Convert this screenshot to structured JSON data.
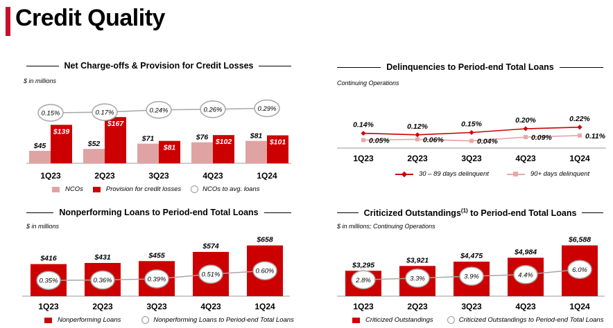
{
  "page": {
    "title": "Credit Quality"
  },
  "colors": {
    "accent": "#c8102e",
    "dark_red": "#cc0000",
    "light_red": "#dfa3a3",
    "pink_line": "#e8a8a8",
    "grey_line": "#a6a6a6"
  },
  "panels": {
    "nco": {
      "title": "Net Charge-offs & Provision for Credit Losses",
      "note": "$ in millions",
      "legend": [
        "NCOs",
        "Provision for credit losses",
        "NCOs to avg. loans"
      ]
    },
    "delinq": {
      "title": "Delinquencies to Period-end Total Loans",
      "note": "Continuing Operations",
      "legend": [
        "30 – 89 days delinquent",
        "90+ days delinquent"
      ]
    },
    "npl": {
      "title": "Nonperforming Loans to Period-end Total Loans",
      "note": "$ in millions",
      "legend": [
        "Nonperforming Loans",
        "Nonperforming Loans to Period-end Total Loans"
      ]
    },
    "crit": {
      "title": "Criticized Outstandings",
      "title_sup": "(1)",
      "title_rest": " to Period-end Total Loans",
      "note": "$ in millions; Continuing Operations",
      "legend": [
        "Criticized Outstandings",
        "Criticized Outstandings to Period-end Total Loans"
      ]
    }
  },
  "chart_data": [
    {
      "type": "bar",
      "title": "Net Charge-offs & Provision for Credit Losses",
      "categories": [
        "1Q23",
        "2Q23",
        "3Q23",
        "4Q23",
        "1Q24"
      ],
      "series": [
        {
          "name": "NCOs",
          "values": [
            45,
            52,
            71,
            76,
            81
          ],
          "labels": [
            "$45",
            "$52",
            "$71",
            "$76",
            "$81"
          ]
        },
        {
          "name": "Provision for credit losses",
          "values": [
            139,
            167,
            81,
            102,
            101
          ],
          "labels": [
            "$139",
            "$167",
            "$81",
            "$102",
            "$101"
          ]
        }
      ],
      "ratio": {
        "name": "NCOs to avg. loans",
        "values": [
          0.15,
          0.17,
          0.24,
          0.26,
          0.29
        ],
        "labels": [
          "0.15%",
          "0.17%",
          "0.24%",
          "0.26%",
          "0.29%"
        ]
      },
      "ylim": [
        0,
        180
      ]
    },
    {
      "type": "line",
      "title": "Delinquencies to Period-end Total Loans",
      "categories": [
        "1Q23",
        "2Q23",
        "3Q23",
        "4Q23",
        "1Q24"
      ],
      "series": [
        {
          "name": "30 – 89 days delinquent",
          "values": [
            0.14,
            0.12,
            0.15,
            0.2,
            0.22
          ],
          "labels": [
            "0.14%",
            "0.12%",
            "0.15%",
            "0.20%",
            "0.22%"
          ]
        },
        {
          "name": "90+ days delinquent",
          "values": [
            0.05,
            0.06,
            0.04,
            0.09,
            0.11
          ],
          "labels": [
            "0.05%",
            "0.06%",
            "0.04%",
            "0.09%",
            "0.11%"
          ]
        }
      ]
    },
    {
      "type": "bar",
      "title": "Nonperforming Loans to Period-end Total Loans",
      "categories": [
        "1Q23",
        "2Q23",
        "3Q23",
        "4Q23",
        "1Q24"
      ],
      "series": [
        {
          "name": "Nonperforming Loans",
          "values": [
            416,
            431,
            455,
            574,
            658
          ],
          "labels": [
            "$416",
            "$431",
            "$455",
            "$574",
            "$658"
          ]
        }
      ],
      "ratio": {
        "name": "Nonperforming Loans to Period-end Total Loans",
        "values": [
          0.35,
          0.36,
          0.39,
          0.51,
          0.6
        ],
        "labels": [
          "0.35%",
          "0.36%",
          "0.39%",
          "0.51%",
          "0.60%"
        ]
      },
      "ylim": [
        0,
        700
      ]
    },
    {
      "type": "bar",
      "title": "Criticized Outstandings to Period-end Total Loans",
      "categories": [
        "1Q23",
        "2Q23",
        "3Q23",
        "4Q23",
        "1Q24"
      ],
      "series": [
        {
          "name": "Criticized Outstandings",
          "values": [
            3295,
            3921,
            4475,
            4984,
            6588
          ],
          "labels": [
            "$3,295",
            "$3,921",
            "$4,475",
            "$4,984",
            "$6,588"
          ]
        }
      ],
      "ratio": {
        "name": "Criticized Outstandings to Period-end Total Loans",
        "values": [
          2.8,
          3.3,
          3.9,
          4.4,
          6.0
        ],
        "labels": [
          "2.8%",
          "3.3%",
          "3.9%",
          "4.4%",
          "6.0%"
        ]
      },
      "ylim": [
        0,
        7000
      ]
    }
  ]
}
